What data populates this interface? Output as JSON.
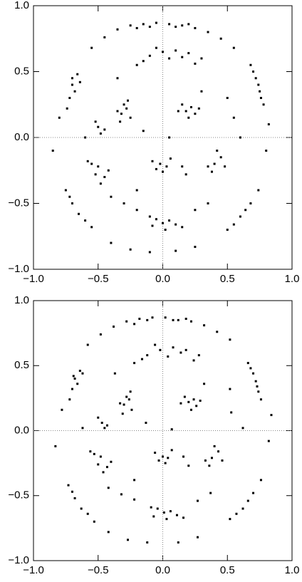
{
  "chart_data": [
    {
      "type": "scatter",
      "color": "#000000",
      "xlim": [
        -1,
        1
      ],
      "ylim": [
        -1,
        1
      ],
      "zero_lines": true,
      "xticks": [
        {
          "value": -1,
          "label": "−1.0"
        },
        {
          "value": -0.5,
          "label": "−0.5"
        },
        {
          "value": 0,
          "label": "0.0"
        },
        {
          "value": 0.5,
          "label": "0.5"
        },
        {
          "value": 1,
          "label": "1.0"
        }
      ],
      "yticks": [
        {
          "value": -1,
          "label": "−1.0"
        },
        {
          "value": -0.5,
          "label": "−0.5"
        },
        {
          "value": 0,
          "label": "0.0"
        },
        {
          "value": 0.5,
          "label": "0.5"
        },
        {
          "value": 1,
          "label": "1.0"
        }
      ],
      "x": [
        -0.35,
        -0.25,
        -0.15,
        -0.05,
        0.05,
        0.15,
        0.25,
        0.35,
        -0.1,
        0.1,
        0.2,
        -0.2,
        0.45,
        0.55,
        -0.45,
        -0.55,
        -0.2,
        -0.1,
        0,
        0.1,
        0.2,
        0.3,
        -0.15,
        0.05,
        0.15,
        0.25,
        -0.05,
        -0.72,
        -0.7,
        -0.66,
        -0.68,
        -0.74,
        -0.64,
        -0.7,
        0.7,
        0.74,
        0.76,
        0.72,
        0.78,
        0.68,
        0.75,
        -0.32,
        -0.28,
        -0.3,
        -0.25,
        -0.35,
        -0.27,
        -0.33,
        0.18,
        0.22,
        0.25,
        0.15,
        0.2,
        0.28,
        0.12,
        -0.5,
        -0.48,
        -0.52,
        -0.45,
        -0.5,
        -0.45,
        -0.55,
        -0.48,
        -0.42,
        -0.52,
        -0.58,
        -0.02,
        0.03,
        -0.08,
        0.06,
        0,
        -0.05,
        0.15,
        0.18,
        0.4,
        0.45,
        0.38,
        0.48,
        0.42,
        0.35,
        -0.05,
        0,
        0.05,
        0.1,
        -0.1,
        0.15,
        0.02,
        -0.08,
        -0.4,
        -0.3,
        -0.2,
        0.25,
        0.35,
        -0.75,
        -0.7,
        -0.65,
        -0.6,
        -0.72,
        -0.55,
        0.5,
        0.6,
        0.68,
        0.74,
        0.55,
        0.64,
        -0.4,
        -0.25,
        -0.1,
        0.1,
        0.25,
        -0.6,
        0.6,
        0.55,
        -0.15,
        0.05,
        -0.2,
        0.3,
        -0.35,
        0.5,
        0.8,
        -0.85,
        0.82,
        -0.8
      ],
      "y": [
        0.82,
        0.85,
        0.86,
        0.87,
        0.86,
        0.85,
        0.83,
        0.8,
        0.84,
        0.84,
        0.86,
        0.83,
        0.75,
        0.68,
        0.76,
        0.68,
        0.55,
        0.62,
        0.65,
        0.66,
        0.64,
        0.6,
        0.58,
        0.6,
        0.61,
        0.56,
        0.68,
        0.3,
        0.4,
        0.48,
        0.35,
        0.22,
        0.42,
        0.45,
        0.5,
        0.4,
        0.3,
        0.45,
        0.25,
        0.55,
        0.35,
        0.18,
        0.22,
        0.25,
        0.15,
        0.2,
        0.28,
        0.12,
        0.2,
        0.23,
        0.18,
        0.25,
        0.15,
        0.22,
        0.2,
        0.08,
        0.03,
        0.12,
        0.06,
        -0.22,
        -0.3,
        -0.2,
        -0.35,
        -0.25,
        -0.28,
        -0.18,
        -0.2,
        -0.22,
        -0.18,
        -0.16,
        -0.26,
        -0.24,
        -0.22,
        -0.28,
        -0.2,
        -0.15,
        -0.26,
        -0.22,
        -0.1,
        -0.22,
        -0.62,
        -0.65,
        -0.63,
        -0.66,
        -0.6,
        -0.68,
        -0.7,
        -0.67,
        -0.45,
        -0.5,
        -0.55,
        -0.55,
        -0.5,
        -0.4,
        -0.5,
        -0.58,
        -0.63,
        -0.45,
        -0.68,
        -0.7,
        -0.6,
        -0.5,
        -0.4,
        -0.66,
        -0.55,
        -0.8,
        -0.85,
        -0.87,
        -0.86,
        -0.83,
        0,
        0,
        0.15,
        0.05,
        0,
        -0.4,
        0.35,
        0.45,
        0.3,
        -0.1,
        -0.1,
        0.1,
        0.15
      ]
    },
    {
      "type": "scatter",
      "color": "#000000",
      "xlim": [
        -1,
        1
      ],
      "ylim": [
        -1,
        1
      ],
      "zero_lines": true,
      "xticks": [
        {
          "value": -1,
          "label": "−1.0"
        },
        {
          "value": -0.5,
          "label": "−0.5"
        },
        {
          "value": 0,
          "label": "0.0"
        },
        {
          "value": 0.5,
          "label": "0.5"
        },
        {
          "value": 1,
          "label": "1.0"
        }
      ],
      "yticks": [
        {
          "value": -1,
          "label": "−1.0"
        },
        {
          "value": -0.5,
          "label": "−0.5"
        },
        {
          "value": 0,
          "label": "0.0"
        },
        {
          "value": 0.5,
          "label": "0.5"
        },
        {
          "value": 1,
          "label": "1.0"
        }
      ],
      "x": [
        -0.38,
        -0.28,
        -0.18,
        -0.08,
        0.02,
        0.12,
        0.22,
        0.32,
        -0.12,
        0.08,
        0.18,
        -0.22,
        0.42,
        0.52,
        -0.48,
        -0.58,
        -0.22,
        -0.12,
        -0.02,
        0.08,
        0.18,
        0.28,
        -0.16,
        0.04,
        0.14,
        0.24,
        -0.06,
        -0.7,
        -0.68,
        -0.64,
        -0.66,
        -0.72,
        -0.62,
        -0.69,
        0.68,
        0.72,
        0.74,
        0.7,
        0.76,
        0.66,
        0.73,
        -0.3,
        -0.26,
        -0.28,
        -0.24,
        -0.33,
        -0.25,
        -0.31,
        0.2,
        0.24,
        0.26,
        0.17,
        0.22,
        0.29,
        0.14,
        -0.47,
        -0.45,
        -0.5,
        -0.43,
        -0.48,
        -0.43,
        -0.53,
        -0.46,
        -0.4,
        -0.5,
        -0.56,
        0,
        0.04,
        -0.06,
        0.07,
        0.02,
        -0.03,
        0.16,
        0.2,
        0.38,
        0.43,
        0.36,
        0.46,
        0.4,
        0.33,
        -0.04,
        0.01,
        0.06,
        0.11,
        -0.09,
        0.16,
        0.03,
        -0.07,
        -0.42,
        -0.32,
        -0.22,
        0.27,
        0.37,
        -0.73,
        -0.68,
        -0.63,
        -0.58,
        -0.7,
        -0.53,
        0.52,
        0.62,
        0.7,
        0.76,
        0.57,
        0.66,
        -0.42,
        -0.27,
        -0.12,
        0.12,
        0.27,
        -0.62,
        0.62,
        0.53,
        -0.13,
        0.07,
        -0.22,
        0.32,
        -0.37,
        0.52,
        0.82,
        -0.83,
        0.84,
        -0.78
      ],
      "y": [
        0.8,
        0.84,
        0.86,
        0.87,
        0.87,
        0.85,
        0.84,
        0.81,
        0.85,
        0.85,
        0.86,
        0.82,
        0.76,
        0.7,
        0.74,
        0.66,
        0.52,
        0.58,
        0.62,
        0.64,
        0.62,
        0.58,
        0.55,
        0.57,
        0.6,
        0.54,
        0.66,
        0.32,
        0.4,
        0.46,
        0.36,
        0.24,
        0.44,
        0.42,
        0.48,
        0.38,
        0.3,
        0.44,
        0.24,
        0.52,
        0.34,
        0.2,
        0.24,
        0.26,
        0.16,
        0.21,
        0.3,
        0.13,
        0.22,
        0.24,
        0.19,
        0.26,
        0.16,
        0.23,
        0.21,
        0.06,
        0.02,
        0.1,
        0.04,
        -0.2,
        -0.28,
        -0.18,
        -0.32,
        -0.24,
        -0.26,
        -0.16,
        -0.2,
        -0.21,
        -0.17,
        -0.15,
        -0.25,
        -0.23,
        -0.2,
        -0.27,
        -0.21,
        -0.16,
        -0.27,
        -0.23,
        -0.12,
        -0.23,
        -0.6,
        -0.63,
        -0.62,
        -0.65,
        -0.59,
        -0.67,
        -0.68,
        -0.66,
        -0.44,
        -0.49,
        -0.53,
        -0.54,
        -0.48,
        -0.42,
        -0.52,
        -0.6,
        -0.64,
        -0.47,
        -0.7,
        -0.68,
        -0.6,
        -0.48,
        -0.38,
        -0.64,
        -0.54,
        -0.78,
        -0.84,
        -0.86,
        -0.86,
        -0.82,
        0.02,
        0.02,
        0.14,
        0.06,
        0.01,
        -0.38,
        0.36,
        0.44,
        0.32,
        -0.08,
        -0.12,
        0.12,
        0.16
      ]
    }
  ]
}
